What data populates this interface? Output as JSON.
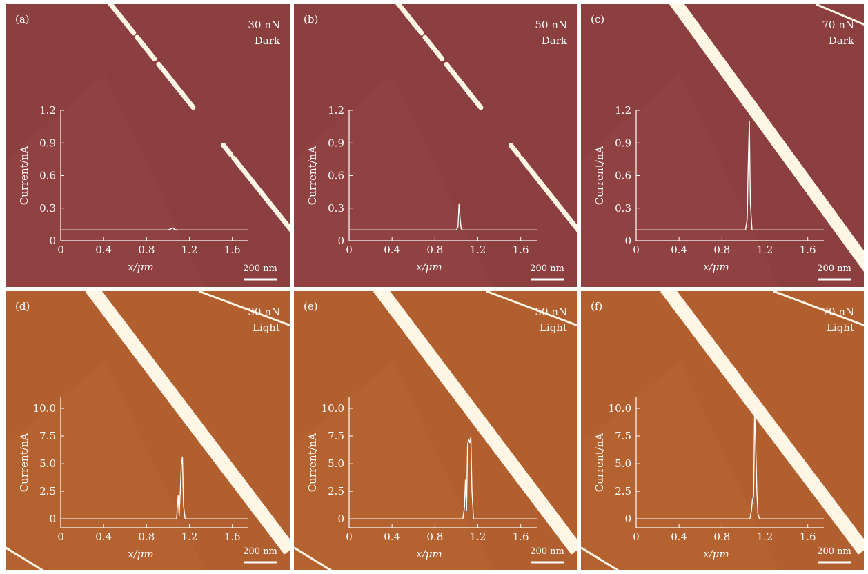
{
  "colors": {
    "background": "#ffffff",
    "dark_substrate": "#8c3f3f",
    "light_substrate": "#b25f2f",
    "stripe": "#fff6e6",
    "curve": "#ffffff",
    "text": "#ffffff"
  },
  "scale_bar_label": "200 nm",
  "chart_data": [
    {
      "type": "line",
      "panel_label": "(a)",
      "force_label": "30 nN",
      "condition_label": "Dark",
      "xlabel": "x/μm",
      "ylabel": "Current/nA",
      "xlim": [
        0,
        1.75
      ],
      "ylim": [
        0,
        1.2
      ],
      "xticks": [
        "0",
        "0.4",
        "0.8",
        "1.2",
        "1.6"
      ],
      "yticks": [
        "0",
        "0.3",
        "0.6",
        "0.9",
        "1.2"
      ],
      "series": [
        {
          "x": [
            0,
            1.0,
            1.03,
            1.04,
            1.05,
            1.06,
            1.09,
            1.75
          ],
          "y": [
            0.1,
            0.1,
            0.11,
            0.12,
            0.115,
            0.105,
            0.1,
            0.1
          ]
        }
      ]
    },
    {
      "type": "line",
      "panel_label": "(b)",
      "force_label": "50 nN",
      "condition_label": "Dark",
      "xlabel": "x/μm",
      "ylabel": "Current/nA",
      "xlim": [
        0,
        1.75
      ],
      "ylim": [
        0,
        1.2
      ],
      "xticks": [
        "0",
        "0.4",
        "0.8",
        "1.2",
        "1.6"
      ],
      "yticks": [
        "0",
        "0.3",
        "0.6",
        "0.9",
        "1.2"
      ],
      "series": [
        {
          "x": [
            0,
            1.0,
            1.015,
            1.025,
            1.035,
            1.045,
            1.06,
            1.75
          ],
          "y": [
            0.1,
            0.1,
            0.13,
            0.34,
            0.2,
            0.11,
            0.1,
            0.1
          ]
        }
      ]
    },
    {
      "type": "line",
      "panel_label": "(c)",
      "force_label": "70 nN",
      "condition_label": "Dark",
      "xlabel": "x/μm",
      "ylabel": "Current/nA",
      "xlim": [
        0,
        1.75
      ],
      "ylim": [
        0,
        1.2
      ],
      "xticks": [
        "0",
        "0.4",
        "0.8",
        "1.2",
        "1.6"
      ],
      "yticks": [
        "0",
        "0.3",
        "0.6",
        "0.9",
        "1.2"
      ],
      "series": [
        {
          "x": [
            0,
            1.02,
            1.035,
            1.045,
            1.055,
            1.065,
            1.08,
            1.75
          ],
          "y": [
            0.1,
            0.1,
            0.2,
            0.7,
            1.1,
            0.35,
            0.1,
            0.1
          ]
        }
      ]
    },
    {
      "type": "line",
      "panel_label": "(d)",
      "force_label": "30 nN",
      "condition_label": "Light",
      "xlabel": "x/μm",
      "ylabel": "Current/nA",
      "xlim": [
        0,
        1.75
      ],
      "ylim": [
        -0.8,
        11
      ],
      "xticks": [
        "0",
        "0.4",
        "0.8",
        "1.2",
        "1.6"
      ],
      "yticks": [
        "0",
        "2.5",
        "5.0",
        "7.5",
        "10.0"
      ],
      "series": [
        {
          "x": [
            0,
            1.08,
            1.095,
            1.105,
            1.115,
            1.125,
            1.135,
            1.145,
            1.16,
            1.75
          ],
          "y": [
            0,
            0,
            2.1,
            0.3,
            2.5,
            5.0,
            5.6,
            1.2,
            0,
            0
          ]
        }
      ]
    },
    {
      "type": "line",
      "panel_label": "(e)",
      "force_label": "50 nN",
      "condition_label": "Light",
      "xlabel": "x/μm",
      "ylabel": "Current/nA",
      "xlim": [
        0,
        1.75
      ],
      "ylim": [
        -0.8,
        11
      ],
      "xticks": [
        "0",
        "0.4",
        "0.8",
        "1.2",
        "1.6"
      ],
      "yticks": [
        "0",
        "2.5",
        "5.0",
        "7.5",
        "10.0"
      ],
      "series": [
        {
          "x": [
            0,
            1.06,
            1.075,
            1.085,
            1.095,
            1.105,
            1.115,
            1.125,
            1.135,
            1.145,
            1.16,
            1.75
          ],
          "y": [
            0,
            0,
            1.0,
            3.5,
            0.8,
            6.8,
            7.2,
            6.9,
            7.4,
            2.5,
            0,
            0
          ]
        }
      ]
    },
    {
      "type": "line",
      "panel_label": "(f)",
      "force_label": "70 nN",
      "condition_label": "Light",
      "xlabel": "x/μm",
      "ylabel": "Current/nA",
      "xlim": [
        0,
        1.75
      ],
      "ylim": [
        -0.8,
        11
      ],
      "xticks": [
        "0",
        "0.4",
        "0.8",
        "1.2",
        "1.6"
      ],
      "yticks": [
        "0",
        "2.5",
        "5.0",
        "7.5",
        "10.0"
      ],
      "series": [
        {
          "x": [
            0,
            1.06,
            1.075,
            1.085,
            1.095,
            1.105,
            1.115,
            1.125,
            1.135,
            1.15,
            1.75
          ],
          "y": [
            0,
            0,
            0.8,
            1.8,
            2.0,
            10.0,
            6.5,
            2.5,
            0.5,
            0,
            0
          ]
        }
      ]
    }
  ]
}
